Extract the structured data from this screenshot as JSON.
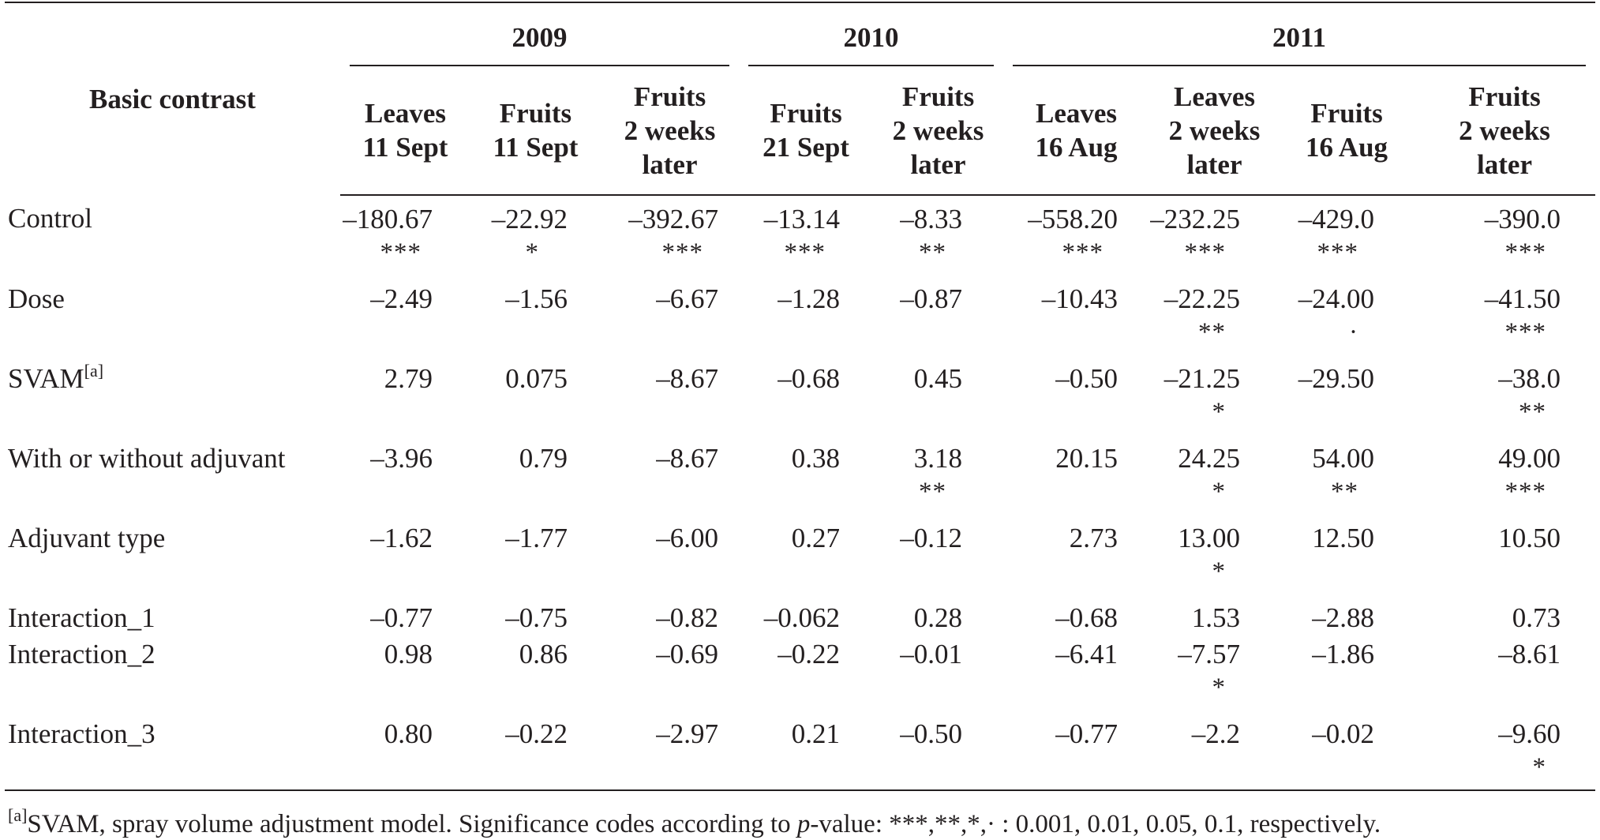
{
  "table": {
    "label_header": "Basic contrast",
    "years": [
      {
        "label": "2009",
        "span": 3
      },
      {
        "label": "2010",
        "span": 2
      },
      {
        "label": "2011",
        "span": 4
      }
    ],
    "subheaders": [
      [
        "Leaves",
        "11 Sept"
      ],
      [
        "Fruits",
        "11 Sept"
      ],
      [
        "Fruits",
        "2 weeks",
        "later"
      ],
      [
        "Fruits",
        "21 Sept"
      ],
      [
        "Fruits",
        "2 weeks",
        "later"
      ],
      [
        "Leaves",
        "16 Aug"
      ],
      [
        "Leaves",
        "2 weeks",
        "later"
      ],
      [
        "Fruits",
        "16 Aug"
      ],
      [
        "Fruits",
        "2 weeks",
        "later"
      ]
    ],
    "rows": [
      {
        "label": "Control",
        "label_sup": "",
        "cells": [
          {
            "v": "–180.67",
            "s": "***"
          },
          {
            "v": "–22.92",
            "s": "*"
          },
          {
            "v": "–392.67",
            "s": "***"
          },
          {
            "v": "–13.14",
            "s": "***"
          },
          {
            "v": "–8.33",
            "s": "**"
          },
          {
            "v": "–558.20",
            "s": "***"
          },
          {
            "v": "–232.25",
            "s": "***"
          },
          {
            "v": "–429.0",
            "s": "***"
          },
          {
            "v": "–390.0",
            "s": "***"
          }
        ]
      },
      {
        "label": "Dose",
        "label_sup": "",
        "cells": [
          {
            "v": "–2.49",
            "s": ""
          },
          {
            "v": "–1.56",
            "s": ""
          },
          {
            "v": "–6.67",
            "s": ""
          },
          {
            "v": "–1.28",
            "s": ""
          },
          {
            "v": "–0.87",
            "s": ""
          },
          {
            "v": "–10.43",
            "s": ""
          },
          {
            "v": "–22.25",
            "s": "**"
          },
          {
            "v": "–24.00",
            "s": "·"
          },
          {
            "v": "–41.50",
            "s": "***"
          }
        ]
      },
      {
        "label": "SVAM",
        "label_sup": "[a]",
        "cells": [
          {
            "v": "2.79",
            "s": ""
          },
          {
            "v": "0.075",
            "s": ""
          },
          {
            "v": "–8.67",
            "s": ""
          },
          {
            "v": "–0.68",
            "s": ""
          },
          {
            "v": "0.45",
            "s": ""
          },
          {
            "v": "–0.50",
            "s": ""
          },
          {
            "v": "–21.25",
            "s": "*"
          },
          {
            "v": "–29.50",
            "s": ""
          },
          {
            "v": "–38.0",
            "s": "**"
          }
        ]
      },
      {
        "label": "With or without adjuvant",
        "label_sup": "",
        "cells": [
          {
            "v": "–3.96",
            "s": ""
          },
          {
            "v": "0.79",
            "s": ""
          },
          {
            "v": "–8.67",
            "s": ""
          },
          {
            "v": "0.38",
            "s": ""
          },
          {
            "v": "3.18",
            "s": "**"
          },
          {
            "v": "20.15",
            "s": ""
          },
          {
            "v": "24.25",
            "s": "*"
          },
          {
            "v": "54.00",
            "s": "**"
          },
          {
            "v": "49.00",
            "s": "***"
          }
        ]
      },
      {
        "label": "Adjuvant type",
        "label_sup": "",
        "cells": [
          {
            "v": "–1.62",
            "s": ""
          },
          {
            "v": "–1.77",
            "s": ""
          },
          {
            "v": "–6.00",
            "s": ""
          },
          {
            "v": "0.27",
            "s": ""
          },
          {
            "v": "–0.12",
            "s": ""
          },
          {
            "v": "2.73",
            "s": ""
          },
          {
            "v": "13.00",
            "s": "*"
          },
          {
            "v": "12.50",
            "s": ""
          },
          {
            "v": "10.50",
            "s": ""
          }
        ]
      },
      {
        "label": "Interaction_1",
        "label_sup": "",
        "cells": [
          {
            "v": "–0.77",
            "s": ""
          },
          {
            "v": "–0.75",
            "s": ""
          },
          {
            "v": "–0.82",
            "s": ""
          },
          {
            "v": "–0.062",
            "s": ""
          },
          {
            "v": "0.28",
            "s": ""
          },
          {
            "v": "–0.68",
            "s": ""
          },
          {
            "v": "1.53",
            "s": ""
          },
          {
            "v": "–2.88",
            "s": ""
          },
          {
            "v": "0.73",
            "s": ""
          }
        ]
      },
      {
        "label": "Interaction_2",
        "label_sup": "",
        "cells": [
          {
            "v": "0.98",
            "s": ""
          },
          {
            "v": "0.86",
            "s": ""
          },
          {
            "v": "–0.69",
            "s": ""
          },
          {
            "v": "–0.22",
            "s": ""
          },
          {
            "v": "–0.01",
            "s": ""
          },
          {
            "v": "–6.41",
            "s": ""
          },
          {
            "v": "–7.57",
            "s": "*"
          },
          {
            "v": "–1.86",
            "s": ""
          },
          {
            "v": "–8.61",
            "s": ""
          }
        ]
      },
      {
        "label": "Interaction_3",
        "label_sup": "",
        "cells": [
          {
            "v": "0.80",
            "s": ""
          },
          {
            "v": "–0.22",
            "s": ""
          },
          {
            "v": "–2.97",
            "s": ""
          },
          {
            "v": "0.21",
            "s": ""
          },
          {
            "v": "–0.50",
            "s": ""
          },
          {
            "v": "–0.77",
            "s": ""
          },
          {
            "v": "–2.2",
            "s": ""
          },
          {
            "v": "–0.02",
            "s": ""
          },
          {
            "v": "–9.60",
            "s": "*"
          }
        ]
      }
    ]
  },
  "footnote": {
    "marker": "[a]",
    "text_before": "SVAM, spray volume adjustment model. Significance codes according to ",
    "italic": "p",
    "text_after": "-value: ***,**,*,· : 0.001, 0.01, 0.05, 0.1, respectively."
  }
}
